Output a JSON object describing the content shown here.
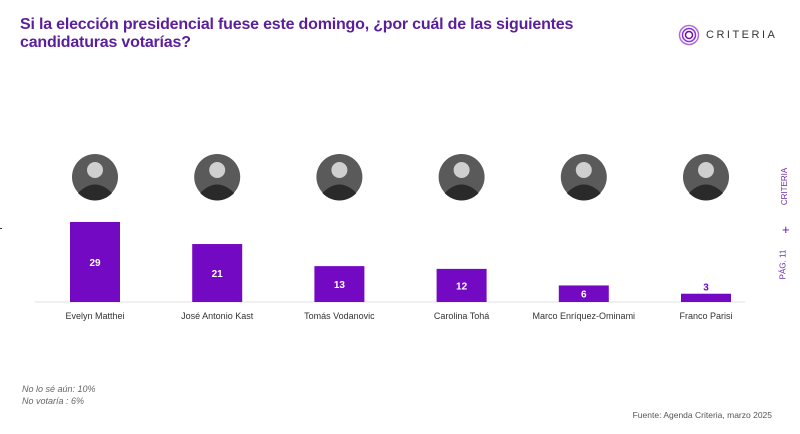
{
  "title": "Si la elección presidencial fuese este domingo, ¿por cuál de las siguientes candidaturas votarías?",
  "logo": {
    "text": "CRITERIA"
  },
  "side": {
    "brand": "CRITERIA",
    "plus": "+",
    "page": "PÁG. 11"
  },
  "notes": [
    "No lo sé aún: 10%",
    "No votaría : 6%"
  ],
  "source": "Fuente: Agenda Criteria, marzo 2025",
  "colors": {
    "bar": "#7409c4",
    "title": "#5a1f9a",
    "label": "#ffffff"
  },
  "chart_data": {
    "type": "bar",
    "categories": [
      "Evelyn Matthei",
      "José Antonio Kast",
      "Tomás Vodanovic",
      "Carolina Tohá",
      "Marco Enríquez-Ominami",
      "Franco Parisi"
    ],
    "values": [
      29,
      21,
      13,
      12,
      6,
      3
    ],
    "data_labels": [
      "29",
      "21",
      "13",
      "12",
      "6",
      "3"
    ],
    "ylim": [
      0,
      30
    ],
    "grid": false,
    "candidate_photos": true
  }
}
